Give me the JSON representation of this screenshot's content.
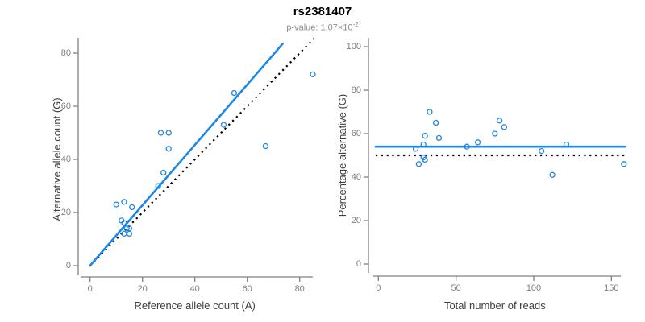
{
  "header": {
    "title": "rs2381407",
    "p_value_label": "p-value:",
    "p_value_mantissa": "1.07×10",
    "p_value_exponent": "-2"
  },
  "colors": {
    "blue_line": "#1E87E5",
    "blue_point": "#2585E2",
    "dotted_line": "#000000",
    "axis_line": "#808080",
    "tick_label": "#808080",
    "axis_title": "#404040",
    "title": "#000000",
    "subtitle": "#8C8C8C"
  },
  "chart_data": [
    {
      "type": "scatter",
      "panel": "allele-counts",
      "xlabel": "Reference allele count (A)",
      "ylabel": "Alternative allele count (G)",
      "xlim": [
        0,
        88
      ],
      "ylim": [
        0,
        87
      ],
      "xticks": [
        0,
        20,
        40,
        60,
        80
      ],
      "yticks": [
        0,
        20,
        40,
        60,
        80
      ],
      "grid": false,
      "legend": "none",
      "points": [
        [
          10,
          23
        ],
        [
          13,
          24
        ],
        [
          16,
          22
        ],
        [
          12,
          17
        ],
        [
          13,
          16
        ],
        [
          14,
          14
        ],
        [
          15,
          14
        ],
        [
          13,
          12
        ],
        [
          15,
          12
        ],
        [
          26,
          30
        ],
        [
          28,
          35
        ],
        [
          27,
          50
        ],
        [
          30,
          50
        ],
        [
          30,
          44
        ],
        [
          51,
          53
        ],
        [
          55,
          65
        ],
        [
          67,
          45
        ],
        [
          85,
          72
        ]
      ],
      "fit_line": {
        "style": "solid",
        "from": [
          0,
          0
        ],
        "to": [
          73.5,
          83.5
        ]
      },
      "reference_line": {
        "style": "dotted",
        "from": [
          0,
          0
        ],
        "to": [
          85.5,
          85.5
        ]
      }
    },
    {
      "type": "scatter",
      "panel": "percentage-vs-reads",
      "xlabel": "Total number of reads",
      "ylabel": "Percentage alternative (G)",
      "xlim": [
        0,
        160
      ],
      "ylim": [
        0,
        100
      ],
      "xticks": [
        0,
        50,
        100,
        150
      ],
      "yticks": [
        0,
        20,
        40,
        60,
        80,
        100
      ],
      "grid": false,
      "legend": "none",
      "points": [
        [
          33,
          70
        ],
        [
          37,
          65
        ],
        [
          30,
          59
        ],
        [
          39,
          58
        ],
        [
          29,
          55
        ],
        [
          24,
          53
        ],
        [
          29,
          49
        ],
        [
          30,
          48
        ],
        [
          26,
          46
        ],
        [
          57,
          54
        ],
        [
          64,
          56
        ],
        [
          75,
          60
        ],
        [
          78,
          66
        ],
        [
          81,
          63
        ],
        [
          105,
          52
        ],
        [
          112,
          41
        ],
        [
          121,
          55
        ],
        [
          158,
          46
        ]
      ],
      "fit_line": {
        "style": "solid",
        "y": 54
      },
      "reference_line": {
        "style": "dotted",
        "y": 50
      }
    }
  ]
}
